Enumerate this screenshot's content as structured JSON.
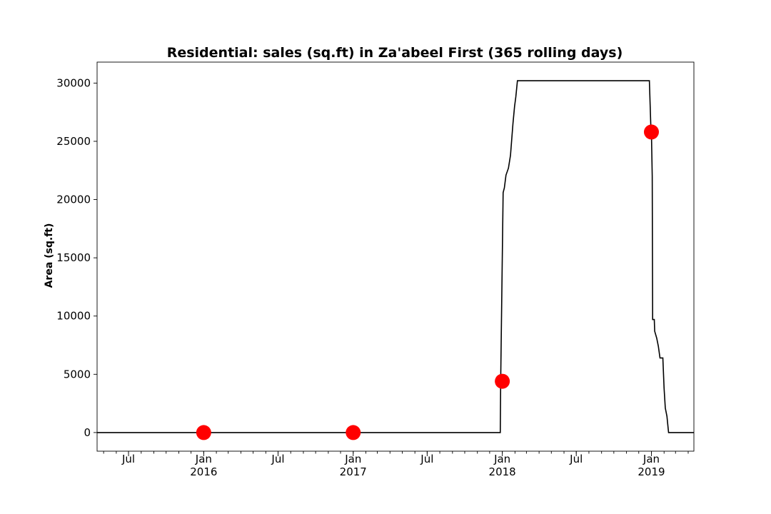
{
  "chart_data": {
    "type": "line",
    "title": "Residential: sales (sq.ft) in Za'abeel First (365 rolling days)",
    "xlabel": "",
    "ylabel": "Area (sq.ft)",
    "x_range": [
      "2015-04-15",
      "2019-04-15"
    ],
    "ylim": [
      -1600,
      31800
    ],
    "yticks": [
      0,
      5000,
      10000,
      15000,
      20000,
      25000,
      30000
    ],
    "grid": false,
    "legend": "none",
    "colors": {
      "line": "#000000",
      "marker": "#ff0000"
    },
    "xticks_major": [
      {
        "date": "2015-07-01",
        "label": "Jul",
        "sublabel": ""
      },
      {
        "date": "2016-01-01",
        "label": "Jan",
        "sublabel": "2016"
      },
      {
        "date": "2016-07-01",
        "label": "Jul",
        "sublabel": ""
      },
      {
        "date": "2017-01-01",
        "label": "Jan",
        "sublabel": "2017"
      },
      {
        "date": "2017-07-01",
        "label": "Jul",
        "sublabel": ""
      },
      {
        "date": "2018-01-01",
        "label": "Jan",
        "sublabel": "2018"
      },
      {
        "date": "2018-07-01",
        "label": "Jul",
        "sublabel": ""
      },
      {
        "date": "2019-01-01",
        "label": "Jan",
        "sublabel": "2019"
      }
    ],
    "series": [
      {
        "kind": "line",
        "points": [
          [
            "2015-04-15",
            0
          ],
          [
            "2017-12-27",
            0
          ],
          [
            "2017-12-28",
            4400
          ],
          [
            "2018-01-03",
            20600
          ],
          [
            "2018-01-06",
            21000
          ],
          [
            "2018-01-10",
            22100
          ],
          [
            "2018-01-16",
            22700
          ],
          [
            "2018-01-21",
            23800
          ],
          [
            "2018-01-27",
            26500
          ],
          [
            "2018-01-31",
            28000
          ],
          [
            "2018-02-03",
            28800
          ],
          [
            "2018-02-07",
            30200
          ],
          [
            "2018-12-27",
            30200
          ],
          [
            "2018-12-31",
            25800
          ],
          [
            "2019-01-01",
            25800
          ],
          [
            "2019-01-03",
            22000
          ],
          [
            "2019-01-04",
            9700
          ],
          [
            "2019-01-08",
            9700
          ],
          [
            "2019-01-09",
            8700
          ],
          [
            "2019-01-14",
            8100
          ],
          [
            "2019-01-18",
            7400
          ],
          [
            "2019-01-22",
            6400
          ],
          [
            "2019-01-29",
            6400
          ],
          [
            "2019-02-01",
            3800
          ],
          [
            "2019-02-04",
            2100
          ],
          [
            "2019-02-08",
            1400
          ],
          [
            "2019-02-12",
            0
          ],
          [
            "2019-04-15",
            0
          ]
        ]
      },
      {
        "kind": "scatter",
        "points": [
          [
            "2016-01-01",
            0
          ],
          [
            "2017-01-01",
            0
          ],
          [
            "2018-01-01",
            4400
          ],
          [
            "2019-01-01",
            25800
          ]
        ]
      }
    ]
  }
}
